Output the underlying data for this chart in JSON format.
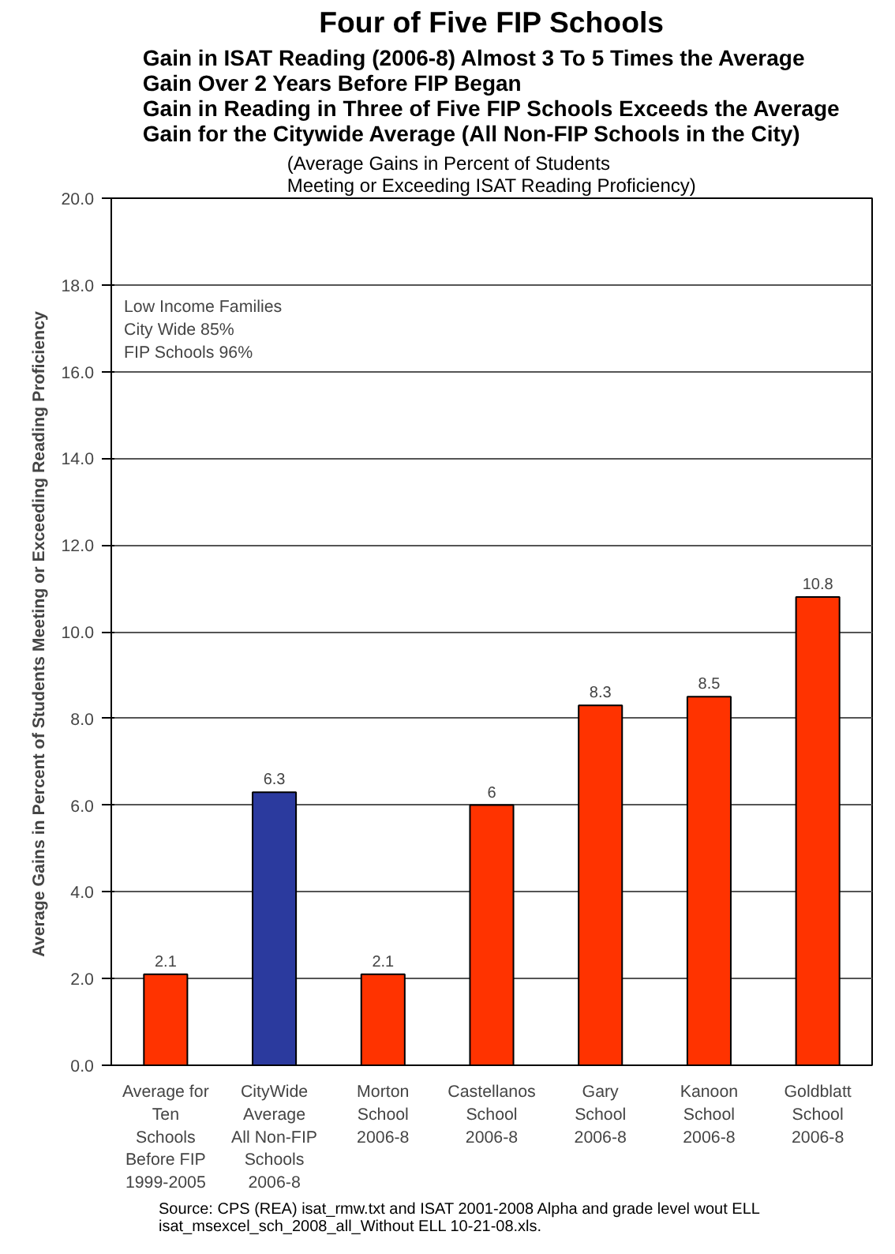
{
  "chart_data": {
    "type": "bar",
    "title": "Four of Five FIP Schools",
    "subtitle": "Gain in ISAT Reading (2006-8) Almost 3 To 5 Times the Average\nGain Over 2 Years Before FIP Began\nGain in Reading in Three of Five FIP Schools Exceeds the Average\nGain for the Citywide Average (All Non-FIP Schools in the City)",
    "annotations": [
      "(Average Gains in Percent of Students\nMeeting or Exceeding ISAT Reading Proficiency)",
      "Low Income Families\nCity Wide 85%\nFIP Schools 96%",
      "Source:  CPS (REA) isat_rmw.txt and ISAT 2001-2008 Alpha and grade level wout ELL\n  isat_msexcel_sch_2008_all_Without ELL 10-21-08.xls."
    ],
    "ylabel": "Average Gains in Percent of Students  Meeting or Exceeding Reading Proficiency",
    "categories": [
      "Average for\nTen\nSchools\nBefore FIP\n1999-2005",
      "CityWide\nAverage\nAll Non-FIP\nSchools\n2006-8",
      "Morton\nSchool\n2006-8",
      "Castellanos\nSchool\n2006-8",
      "Gary\nSchool\n2006-8",
      "Kanoon\nSchool\n2006-8",
      "Goldblatt\nSchool\n2006-8"
    ],
    "values": [
      2.1,
      6.3,
      2.1,
      6,
      8.3,
      8.5,
      10.8
    ],
    "colors": [
      "#ff3300",
      "#2b3a9e",
      "#ff3300",
      "#ff3300",
      "#ff3300",
      "#ff3300",
      "#ff3300"
    ],
    "ylim": [
      0,
      20
    ],
    "yticks": [
      {
        "value": 0,
        "label": "0.0"
      },
      {
        "value": 2,
        "label": "2.0"
      },
      {
        "value": 4,
        "label": "4.0"
      },
      {
        "value": 6,
        "label": "6.0"
      },
      {
        "value": 8,
        "label": "8.0"
      },
      {
        "value": 10,
        "label": "10.0"
      },
      {
        "value": 12,
        "label": "12.0"
      },
      {
        "value": 14,
        "label": "14.0"
      },
      {
        "value": 16,
        "label": "16.0"
      },
      {
        "value": 18,
        "label": "18.0"
      },
      {
        "value": 20,
        "label": "20.0"
      }
    ],
    "grid": "y",
    "data_labels": true
  }
}
